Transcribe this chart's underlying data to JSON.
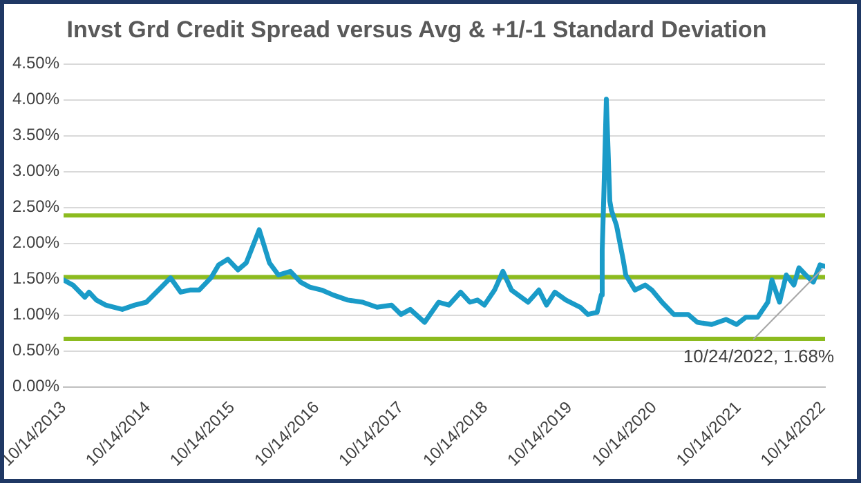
{
  "chart_data": {
    "type": "line",
    "title": "Invst Grd Credit Spread versus Avg & +1/-1 Standard Deviation",
    "x": [
      "2013-10-14",
      "2013-11-23",
      "2014-01-14",
      "2014-02-01",
      "2014-03-05",
      "2014-04-14",
      "2014-06-25",
      "2014-08-18",
      "2014-10-07",
      "2014-12-11",
      "2015-01-20",
      "2015-03-05",
      "2015-04-14",
      "2015-05-24",
      "2015-07-14",
      "2015-08-16",
      "2015-09-25",
      "2015-11-08",
      "2015-12-14",
      "2016-02-08",
      "2016-03-23",
      "2016-05-01",
      "2016-06-22",
      "2016-08-05",
      "2016-09-14",
      "2016-11-04",
      "2016-12-25",
      "2017-02-25",
      "2017-05-01",
      "2017-07-02",
      "2017-09-03",
      "2017-10-14",
      "2017-11-23",
      "2018-01-24",
      "2018-03-26",
      "2018-05-09",
      "2018-06-29",
      "2018-08-08",
      "2018-09-10",
      "2018-10-10",
      "2018-11-23",
      "2018-12-29",
      "2019-02-04",
      "2019-04-17",
      "2019-06-03",
      "2019-07-06",
      "2019-08-11",
      "2019-09-28",
      "2019-11-29",
      "2020-01-01",
      "2020-02-10",
      "2020-02-28",
      "2020-03-03",
      "2020-03-10",
      "2020-03-21",
      "2020-03-28",
      "2020-04-05",
      "2020-04-12",
      "2020-05-04",
      "2020-06-02",
      "2020-06-13",
      "2020-07-23",
      "2020-09-05",
      "2020-10-04",
      "2020-11-17",
      "2021-01-07",
      "2021-03-10",
      "2021-04-19",
      "2021-06-20",
      "2021-08-21",
      "2021-10-06",
      "2021-11-15",
      "2022-01-05",
      "2022-02-18",
      "2022-03-08",
      "2022-04-10",
      "2022-05-09",
      "2022-06-11",
      "2022-07-03",
      "2022-08-01",
      "2022-09-03",
      "2022-10-02",
      "2022-10-24"
    ],
    "series": [
      {
        "color": "#1a9bc8",
        "values": [
          1.49,
          1.42,
          1.25,
          1.32,
          1.21,
          1.14,
          1.08,
          1.14,
          1.18,
          1.39,
          1.52,
          1.32,
          1.35,
          1.35,
          1.52,
          1.7,
          1.78,
          1.63,
          1.73,
          2.19,
          1.73,
          1.56,
          1.61,
          1.46,
          1.39,
          1.35,
          1.28,
          1.21,
          1.18,
          1.11,
          1.14,
          1.01,
          1.08,
          0.9,
          1.18,
          1.14,
          1.32,
          1.18,
          1.21,
          1.14,
          1.35,
          1.61,
          1.35,
          1.18,
          1.35,
          1.14,
          1.32,
          1.21,
          1.11,
          1.01,
          1.04,
          1.28,
          1.9,
          2.66,
          4.01,
          3.35,
          2.59,
          2.46,
          2.25,
          1.77,
          1.56,
          1.35,
          1.42,
          1.35,
          1.18,
          1.01,
          1.01,
          0.9,
          0.87,
          0.94,
          0.87,
          0.97,
          0.97,
          1.18,
          1.49,
          1.18,
          1.56,
          1.42,
          1.66,
          1.56,
          1.46,
          1.7,
          1.68
        ]
      }
    ],
    "xlim": [
      "2013-10-14",
      "2022-10-24"
    ],
    "xticks": [
      {
        "value": "2013-10-14",
        "label": "10/14/2013"
      },
      {
        "value": "2014-10-14",
        "label": "10/14/2014"
      },
      {
        "value": "2015-10-14",
        "label": "10/14/2015"
      },
      {
        "value": "2016-10-14",
        "label": "10/14/2016"
      },
      {
        "value": "2017-10-14",
        "label": "10/14/2017"
      },
      {
        "value": "2018-10-14",
        "label": "10/14/2018"
      },
      {
        "value": "2019-10-14",
        "label": "10/14/2019"
      },
      {
        "value": "2020-10-14",
        "label": "10/14/2020"
      },
      {
        "value": "2021-10-14",
        "label": "10/14/2021"
      },
      {
        "value": "2022-10-14",
        "label": "10/14/2022"
      }
    ],
    "ylim": [
      0,
      4.5
    ],
    "yticks": [
      {
        "value": 0,
        "label": "0.00%"
      },
      {
        "value": 0.5,
        "label": "0.50%"
      },
      {
        "value": 1,
        "label": "1.00%"
      },
      {
        "value": 1.5,
        "label": "1.50%"
      },
      {
        "value": 2,
        "label": "2.00%"
      },
      {
        "value": 2.5,
        "label": "2.50%"
      },
      {
        "value": 3,
        "label": "3.00%"
      },
      {
        "value": 3.5,
        "label": "3.50%"
      },
      {
        "value": 4,
        "label": "4.00%"
      },
      {
        "value": 4.5,
        "label": "4.50%"
      }
    ],
    "ref_lines": [
      {
        "axis": "y",
        "value": 2.39,
        "color": "#8cbb1f"
      },
      {
        "axis": "y",
        "value": 1.53,
        "color": "#8cbb1f"
      },
      {
        "axis": "y",
        "value": 0.67,
        "color": "#8cbb1f"
      }
    ],
    "annotations": [
      {
        "text": "10/24/2022, 1.68%",
        "x": "2022-10-24",
        "y": 1.68
      }
    ],
    "grid": "y",
    "legend": false,
    "marker": "none",
    "line_style": "solid"
  }
}
